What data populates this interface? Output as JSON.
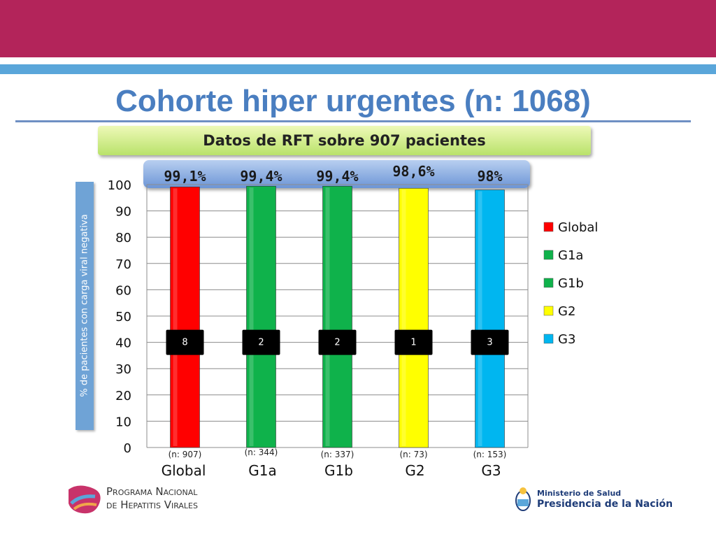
{
  "header": {
    "title": "Cohorte hiper urgentes (n: 1068)",
    "subtitle": "Datos de RFT sobre 907 pacientes"
  },
  "chart_data": {
    "type": "bar",
    "categories": [
      "Global",
      "G1a",
      "G1b",
      "G2",
      "G3"
    ],
    "values": [
      99.1,
      99.4,
      99.4,
      98.6,
      98
    ],
    "value_labels": [
      "99,1%",
      "99,4%",
      "99,4%",
      "98,6%",
      "98%"
    ],
    "count_labels": [
      "8",
      "2",
      "2",
      "1",
      "3"
    ],
    "n_labels": [
      "(n: 907)",
      "(n: 344)",
      "(n: 337)",
      "(n: 73)",
      "(n: 153)"
    ],
    "colors": [
      "#ff0000",
      "#0fb24b",
      "#0fb24b",
      "#ffff00",
      "#00b6f0"
    ],
    "ylabel": "% de pacientes con carga viral negativa",
    "ylim": [
      0,
      100
    ],
    "yticks": [
      0,
      10,
      20,
      30,
      40,
      50,
      60,
      70,
      80,
      90,
      100
    ],
    "grid": true,
    "legend": {
      "position": "right",
      "entries": [
        "Global",
        "G1a",
        "G1b",
        "G2",
        "G3"
      ]
    }
  },
  "footer": {
    "left_logo_line1": "Programa Nacional",
    "left_logo_line2": "de Hepatitis Virales",
    "right_logo_line1": "Ministerio de Salud",
    "right_logo_line2": "Presidencia de la Nación"
  }
}
